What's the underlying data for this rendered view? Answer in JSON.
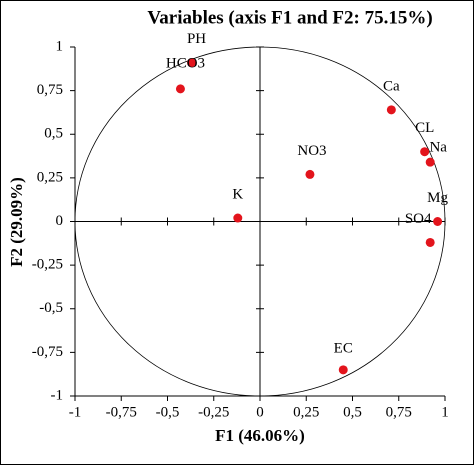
{
  "chart_data": {
    "type": "scatter",
    "title": "Variables (axis F1 and F2: 75.15%)",
    "x_label": "F1 (46.06%)",
    "y_label": "F2 (29.09%)",
    "color": "#e3141c",
    "labels": [
      "PH",
      "HCO3",
      "Ca",
      "CL",
      "Na",
      "NO3",
      "K",
      "Mg",
      "SO4",
      "EC"
    ],
    "x": [
      -0.37,
      -0.43,
      0.71,
      0.89,
      0.92,
      0.27,
      -0.12,
      0.96,
      0.92,
      0.45
    ],
    "y": [
      0.91,
      0.76,
      0.64,
      0.4,
      0.34,
      0.27,
      0.02,
      0.0,
      -0.12,
      -0.85
    ],
    "xlim": [
      -1,
      1
    ],
    "ylim": [
      -1,
      1
    ],
    "xticks": [
      -1,
      {
        "value": -0.75,
        "label": "-0,75"
      },
      {
        "value": -0.5,
        "label": "-0,5"
      },
      {
        "value": -0.25,
        "label": "-0,25"
      },
      0,
      {
        "value": 0.25,
        "label": "0,25"
      },
      {
        "value": 0.5,
        "label": "0,5"
      },
      {
        "value": 0.75,
        "label": "0,75"
      },
      1
    ],
    "yticks": [
      1,
      {
        "value": 0.75,
        "label": "0,75"
      },
      {
        "value": 0.5,
        "label": "0,5"
      },
      {
        "value": 0.25,
        "label": "0,25"
      },
      0,
      {
        "value": -0.25,
        "label": "-0,25"
      },
      {
        "value": -0.5,
        "label": "-0,5"
      },
      {
        "value": -0.75,
        "label": "-0,75"
      },
      -1
    ]
  }
}
